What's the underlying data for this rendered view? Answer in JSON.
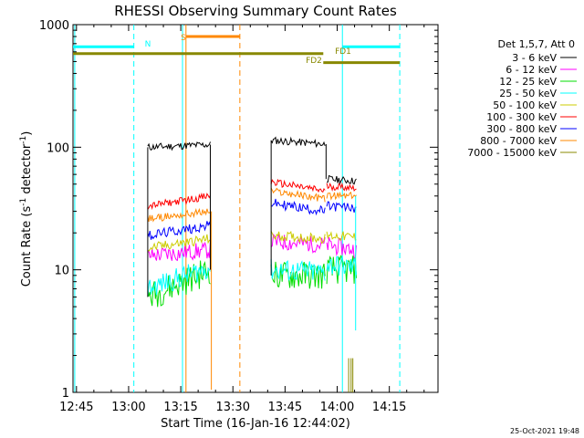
{
  "chart_data": {
    "type": "line",
    "title": "RHESSI Observing Summary Count Rates",
    "xlabel": "Start Time (16-Jan-16 12:44:02)",
    "ylabel": "Count Rate (s",
    "ylabel_sup": "-1",
    "ylabel_end": " detector",
    "ylabel_end_sup": "-1",
    "ylabel_close": ")",
    "yscale": "log",
    "ylim": [
      1,
      1000
    ],
    "xlim_min": [
      764,
      1323
    ],
    "x_tick_labels": [
      "12:45",
      "13:00",
      "13:15",
      "13:30",
      "13:45",
      "14:00",
      "14:15"
    ],
    "x_tick_values": [
      765,
      780,
      795,
      810,
      825,
      840,
      855
    ],
    "y_tick_labels": [
      "1",
      "10",
      "100",
      "1000"
    ],
    "y_tick_values": [
      1,
      10,
      100,
      1000
    ],
    "legend_title": "Det 1,5,7, Att 0",
    "legend_placement": "right",
    "series": [
      {
        "name": "3 - 6 keV",
        "color": "#000000",
        "seg1": [
          [
            785.5,
            100
          ],
          [
            803.5,
            105
          ]
        ],
        "seg2": [
          [
            821,
            114
          ],
          [
            836.5,
            106
          ]
        ],
        "seg3": [
          [
            837,
            55
          ],
          [
            845.5,
            53
          ]
        ],
        "noise": 0.03
      },
      {
        "name": "6 - 12 keV",
        "color": "#ff00ff",
        "seg1": [
          [
            785.5,
            13
          ],
          [
            803.5,
            14.5
          ]
        ],
        "seg2": [
          [
            821,
            17
          ],
          [
            836.5,
            16
          ]
        ],
        "seg3": [
          [
            837,
            16
          ],
          [
            845.5,
            14.5
          ]
        ],
        "noise": 0.07
      },
      {
        "name": "12 - 25 keV",
        "color": "#00dd00",
        "seg1": [
          [
            785.5,
            6
          ],
          [
            803.5,
            10
          ]
        ],
        "seg2": [
          [
            821,
            9
          ],
          [
            836.5,
            9
          ]
        ],
        "seg3": [
          [
            837,
            10
          ],
          [
            845.5,
            10
          ]
        ],
        "noise": 0.12
      },
      {
        "name": "25 - 50 keV",
        "color": "#00ffff",
        "seg1": [
          [
            785.5,
            7
          ],
          [
            803.5,
            10.5
          ]
        ],
        "seg2": [
          [
            821,
            10
          ],
          [
            836.5,
            9.5
          ]
        ],
        "seg3": [
          [
            837,
            11
          ],
          [
            845.5,
            10.5
          ]
        ],
        "noise": 0.09
      },
      {
        "name": "50 - 100 keV",
        "color": "#cccc00",
        "seg1": [
          [
            785.5,
            15
          ],
          [
            803.5,
            18
          ]
        ],
        "seg2": [
          [
            821,
            19
          ],
          [
            836.5,
            18
          ]
        ],
        "seg3": [
          [
            837,
            19
          ],
          [
            845.5,
            18.5
          ]
        ],
        "noise": 0.04
      },
      {
        "name": "100 - 300 keV",
        "color": "#ff0000",
        "seg1": [
          [
            785.5,
            33
          ],
          [
            803.5,
            40
          ]
        ],
        "seg2": [
          [
            821,
            52
          ],
          [
            836.5,
            44
          ]
        ],
        "seg3": [
          [
            837,
            48
          ],
          [
            845.5,
            47
          ]
        ],
        "noise": 0.03
      },
      {
        "name": "300 - 800 keV",
        "color": "#0000ff",
        "seg1": [
          [
            785.5,
            19
          ],
          [
            803.5,
            23
          ]
        ],
        "seg2": [
          [
            821,
            35
          ],
          [
            836.5,
            30
          ]
        ],
        "seg3": [
          [
            837,
            33
          ],
          [
            845.5,
            32
          ]
        ],
        "noise": 0.04
      },
      {
        "name": "800 - 7000 keV",
        "color": "#ff8800",
        "seg1": [
          [
            785.5,
            26
          ],
          [
            803.5,
            30
          ]
        ],
        "seg2": [
          [
            821,
            44
          ],
          [
            836.5,
            38
          ]
        ],
        "seg3": [
          [
            837,
            40
          ],
          [
            845.5,
            40
          ]
        ],
        "noise": 0.03
      },
      {
        "name": "7000 - 15000 keV",
        "color": "#888800",
        "seg1": [],
        "seg2": [],
        "seg3": [],
        "noise": 0.0
      }
    ],
    "flags": [
      {
        "label": "N",
        "color": "#00ffff",
        "segments": [
          [
            764,
            781.5
          ],
          [
            841.5,
            858
          ]
        ],
        "level": 660
      },
      {
        "label": "S",
        "color": "#ff8800",
        "segments": [
          [
            796.5,
            812
          ]
        ],
        "level": 800
      },
      {
        "label": "FD1",
        "color": "#888800",
        "segments": [
          [
            764,
            836
          ]
        ],
        "level": 580
      },
      {
        "label": "FD2",
        "color": "#888800",
        "segments": [
          [
            836,
            858
          ]
        ],
        "level": 490
      }
    ],
    "vertical_lines": [
      {
        "x": 764.5,
        "color": "#00ffff",
        "style": "solid"
      },
      {
        "x": 781.5,
        "color": "#00ffff",
        "style": "dashed"
      },
      {
        "x": 796.5,
        "color": "#ff8800",
        "style": "solid"
      },
      {
        "x": 795.5,
        "color": "#00ffff",
        "style": "solid"
      },
      {
        "x": 812,
        "color": "#ff8800",
        "style": "dashed"
      },
      {
        "x": 841.5,
        "color": "#00ffff",
        "style": "solid"
      },
      {
        "x": 858,
        "color": "#00ffff",
        "style": "dashed"
      }
    ],
    "timestamp": "25-Oct-2021 19:48"
  }
}
